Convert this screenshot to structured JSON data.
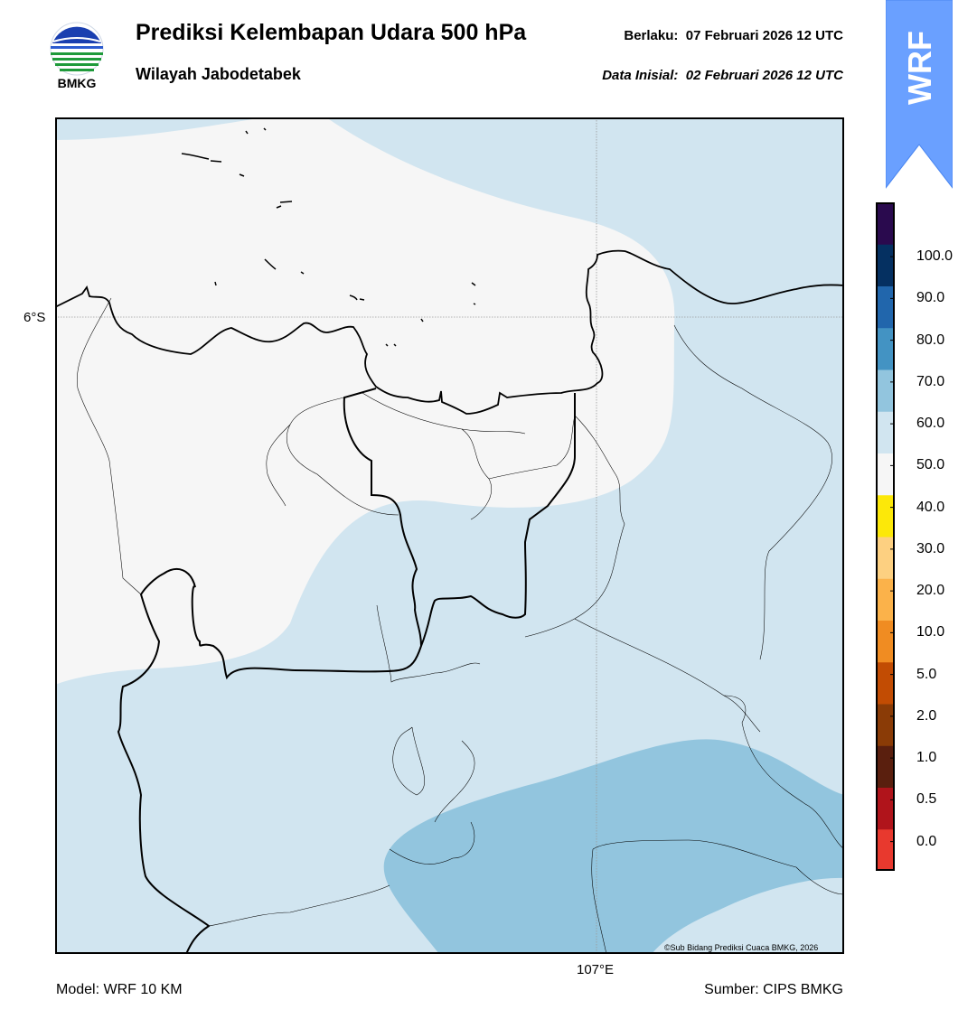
{
  "header": {
    "title": "Prediksi Kelembapan Udara 500 hPa",
    "subtitle": "Wilayah Jabodetabek",
    "valid_label": "Berlaku:",
    "valid_time": "07 Februari 2026 12 UTC",
    "init_label": "Data Inisial:",
    "init_time": "02 Februari 2026 12 UTC"
  },
  "logo": {
    "text": "BMKG"
  },
  "badge": {
    "text": "WRF",
    "color": "#6aa0ff"
  },
  "map": {
    "lat_label": "6°S",
    "lon_label": "107°E",
    "credit": "©Sub Bidang Prediksi Cuaca BMKG, 2026"
  },
  "footer": {
    "model": "Model: WRF 10 KM",
    "source": "Sumber: CIPS BMKG"
  },
  "colorbar": {
    "ticks": [
      "0.0",
      "0.5",
      "1.0",
      "2.0",
      "5.0",
      "10.0",
      "20.0",
      "30.0",
      "40.0",
      "50.0",
      "60.0",
      "70.0",
      "80.0",
      "90.0",
      "100.0"
    ],
    "colors": [
      "#e8392e",
      "#b0141b",
      "#5a1f0e",
      "#8a3b06",
      "#c24c03",
      "#f08c22",
      "#fbb24a",
      "#fdd081",
      "#fce809",
      "#f6f6f6",
      "#d1e5f0",
      "#92c5de",
      "#4393c3",
      "#2166ac",
      "#053061",
      "#2a0a4e"
    ]
  }
}
